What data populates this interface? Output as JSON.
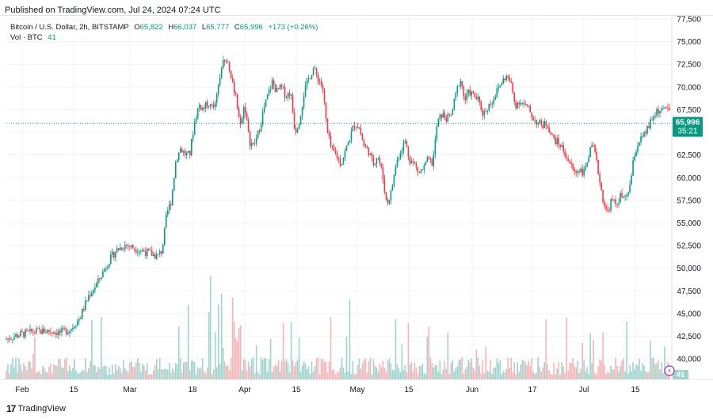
{
  "published": "Published on TradingView.com, Jul 24, 2024 07:24 UTC",
  "legend": {
    "symbol": "Bitcoin / U.S. Dollar, 2h, BITSTAMP",
    "o_label": "O",
    "o": "65,822",
    "h_label": "H",
    "h": "66,037",
    "l_label": "L",
    "l": "65,777",
    "c_label": "C",
    "c": "65,996",
    "change": "+173 (+0.26%)",
    "vol_label": "Vol · BTC",
    "vol": "41"
  },
  "price_badge": {
    "price": "65,996",
    "countdown": "35:21",
    "color": "#089981"
  },
  "vol_badge": "41",
  "footer": {
    "brand": "TradingView",
    "logo": "17"
  },
  "colors": {
    "up": "#089981",
    "down": "#f23645",
    "vol_up": "#9ed4cd",
    "vol_down": "#f4b5b8",
    "grid": "#f0f3fa"
  },
  "chart_data": {
    "type": "candlestick",
    "title": "Bitcoin / U.S. Dollar, 2h, BITSTAMP",
    "ylim": [
      38000,
      77500
    ],
    "y_ticks": [
      "77,500",
      "75,000",
      "72,500",
      "70,000",
      "67,500",
      "65,000",
      "62,500",
      "60,000",
      "57,500",
      "55,000",
      "52,500",
      "50,000",
      "47,500",
      "45,000",
      "42,500",
      "40,000"
    ],
    "x_ticks": [
      "Feb",
      "15",
      "Mar",
      "18",
      "Apr",
      "15",
      "May",
      "15",
      "Jun",
      "17",
      "Jul",
      "15"
    ],
    "last_price": 65996,
    "price_path": [
      [
        0,
        42200
      ],
      [
        3,
        42700
      ],
      [
        6,
        43000
      ],
      [
        9,
        43100
      ],
      [
        12,
        42900
      ],
      [
        14,
        43300
      ],
      [
        16,
        44500
      ],
      [
        18,
        47000
      ],
      [
        20,
        48500
      ],
      [
        22,
        50500
      ],
      [
        24,
        52000
      ],
      [
        26,
        52600
      ],
      [
        28,
        52200
      ],
      [
        30,
        51900
      ],
      [
        32,
        51500
      ],
      [
        33,
        51300
      ],
      [
        34,
        52000
      ],
      [
        35,
        56000
      ],
      [
        36,
        57500
      ],
      [
        37,
        62000
      ],
      [
        38,
        63200
      ],
      [
        39,
        62600
      ],
      [
        40,
        62500
      ],
      [
        41,
        66000
      ],
      [
        42,
        68000
      ],
      [
        43,
        67600
      ],
      [
        44,
        68300
      ],
      [
        45,
        67600
      ],
      [
        46,
        69000
      ],
      [
        47,
        72500
      ],
      [
        48,
        73000
      ],
      [
        49,
        71500
      ],
      [
        50,
        69000
      ],
      [
        51,
        66000
      ],
      [
        52,
        68000
      ],
      [
        53,
        64000
      ],
      [
        54,
        63500
      ],
      [
        55,
        65000
      ],
      [
        56,
        67200
      ],
      [
        57,
        69000
      ],
      [
        58,
        70500
      ],
      [
        59,
        69500
      ],
      [
        60,
        70000
      ],
      [
        61,
        69000
      ],
      [
        62,
        69500
      ],
      [
        63,
        65000
      ],
      [
        64,
        66500
      ],
      [
        65,
        69500
      ],
      [
        66,
        71000
      ],
      [
        67,
        72000
      ],
      [
        68,
        71000
      ],
      [
        69,
        70000
      ],
      [
        70,
        65000
      ],
      [
        71,
        63000
      ],
      [
        72,
        62500
      ],
      [
        73,
        61500
      ],
      [
        74,
        63000
      ],
      [
        75,
        64500
      ],
      [
        76,
        66000
      ],
      [
        77,
        65500
      ],
      [
        78,
        63500
      ],
      [
        79,
        63000
      ],
      [
        80,
        61500
      ],
      [
        81,
        62500
      ],
      [
        82,
        60500
      ],
      [
        83,
        57000
      ],
      [
        84,
        58500
      ],
      [
        85,
        61500
      ],
      [
        86,
        63000
      ],
      [
        87,
        64000
      ],
      [
        88,
        62000
      ],
      [
        89,
        61500
      ],
      [
        90,
        60500
      ],
      [
        91,
        61000
      ],
      [
        92,
        62000
      ],
      [
        93,
        61500
      ],
      [
        94,
        66000
      ],
      [
        95,
        67000
      ],
      [
        96,
        66500
      ],
      [
        97,
        66800
      ],
      [
        98,
        69000
      ],
      [
        99,
        71000
      ],
      [
        100,
        68500
      ],
      [
        101,
        69500
      ],
      [
        102,
        69000
      ],
      [
        103,
        68500
      ],
      [
        104,
        67000
      ],
      [
        105,
        67800
      ],
      [
        106,
        68500
      ],
      [
        107,
        69500
      ],
      [
        108,
        70500
      ],
      [
        109,
        71200
      ],
      [
        110,
        70500
      ],
      [
        111,
        68000
      ],
      [
        112,
        68500
      ],
      [
        113,
        68000
      ],
      [
        114,
        67500
      ],
      [
        115,
        66500
      ],
      [
        116,
        66000
      ],
      [
        117,
        65800
      ],
      [
        118,
        66000
      ],
      [
        119,
        64500
      ],
      [
        120,
        64000
      ],
      [
        121,
        63500
      ],
      [
        122,
        62500
      ],
      [
        123,
        61500
      ],
      [
        124,
        60500
      ],
      [
        125,
        61000
      ],
      [
        126,
        60500
      ],
      [
        127,
        62500
      ],
      [
        128,
        63500
      ],
      [
        129,
        61000
      ],
      [
        130,
        58000
      ],
      [
        131,
        56000
      ],
      [
        132,
        57500
      ],
      [
        133,
        57000
      ],
      [
        134,
        58000
      ],
      [
        135,
        57500
      ],
      [
        136,
        59000
      ],
      [
        137,
        62500
      ],
      [
        138,
        64000
      ],
      [
        139,
        64500
      ],
      [
        140,
        65500
      ],
      [
        141,
        66500
      ],
      [
        142,
        67500
      ],
      [
        143,
        67200
      ],
      [
        144,
        68000
      ],
      [
        145,
        66500
      ]
    ]
  }
}
